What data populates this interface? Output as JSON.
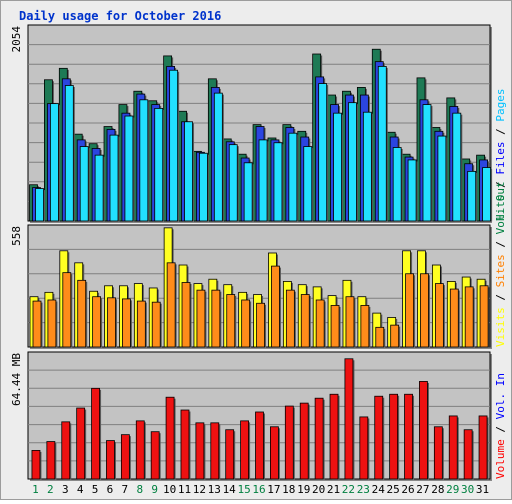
{
  "title": "Daily usage for October 2016",
  "right_legend": [
    {
      "text": "Hits",
      "color": "#008040"
    },
    {
      "text": "Files",
      "color": "#0000ff"
    },
    {
      "text": "Pages",
      "color": "#00c0ff"
    },
    {
      "text": "Visits",
      "color": "#ffff00"
    },
    {
      "text": "Sites",
      "color": "#ff8000"
    },
    {
      "text": "Vol. Out",
      "color": "#008040"
    },
    {
      "text": "Vol. In",
      "color": "#0000ff"
    },
    {
      "text": "Volume",
      "color": "#ff0000"
    }
  ],
  "colors": {
    "hits": "#1e7a55",
    "files": "#2b45e0",
    "pages": "#22e0ff",
    "visits": "#ffff22",
    "sites": "#ff8c1a",
    "volume": "#ee1111",
    "plot_bg": "#c3c3c3",
    "grid": "#808080",
    "title": "#0033cc",
    "weekday_label": "#000000",
    "weekend_label": "#008040"
  },
  "chart_data": [
    {
      "type": "bar",
      "name": "hits-files-pages",
      "ylim": [
        0,
        2054
      ],
      "ylabel": "2054",
      "categories": [
        "1",
        "2",
        "3",
        "4",
        "5",
        "6",
        "7",
        "8",
        "9",
        "10",
        "11",
        "12",
        "13",
        "14",
        "15",
        "16",
        "17",
        "18",
        "19",
        "20",
        "21",
        "22",
        "23",
        "24",
        "25",
        "26",
        "27",
        "28",
        "29",
        "30",
        "31"
      ],
      "weekend_days": [
        "1",
        "2",
        "8",
        "9",
        "15",
        "16",
        "22",
        "23",
        "29",
        "30"
      ],
      "series": [
        {
          "key": "hits",
          "values": [
            380,
            1480,
            1600,
            910,
            810,
            990,
            1220,
            1360,
            1260,
            1730,
            1150,
            730,
            1490,
            860,
            700,
            1010,
            870,
            1010,
            940,
            1750,
            1320,
            1360,
            1400,
            1800,
            930,
            700,
            1500,
            980,
            1290,
            650,
            690
          ]
        },
        {
          "key": "files",
          "values": [
            350,
            1230,
            1490,
            850,
            760,
            960,
            1130,
            1330,
            1220,
            1620,
            1040,
            720,
            1400,
            830,
            660,
            990,
            850,
            980,
            880,
            1510,
            1220,
            1320,
            1320,
            1670,
            880,
            670,
            1270,
            940,
            1200,
            600,
            640
          ]
        },
        {
          "key": "pages",
          "values": [
            340,
            1230,
            1420,
            780,
            690,
            900,
            1100,
            1270,
            1180,
            1580,
            1040,
            710,
            1340,
            800,
            610,
            850,
            820,
            920,
            780,
            1440,
            1130,
            1240,
            1140,
            1620,
            770,
            640,
            1220,
            890,
            1130,
            520,
            560
          ]
        }
      ]
    },
    {
      "type": "bar",
      "name": "visits-sites",
      "ylim": [
        0,
        558
      ],
      "ylabel": "558",
      "categories": [
        "1",
        "2",
        "3",
        "4",
        "5",
        "6",
        "7",
        "8",
        "9",
        "10",
        "11",
        "12",
        "13",
        "14",
        "15",
        "16",
        "17",
        "18",
        "19",
        "20",
        "21",
        "22",
        "23",
        "24",
        "25",
        "26",
        "27",
        "28",
        "29",
        "30",
        "31"
      ],
      "series": [
        {
          "key": "visits",
          "values": [
            230,
            250,
            440,
            385,
            255,
            280,
            280,
            290,
            270,
            545,
            375,
            290,
            310,
            285,
            250,
            240,
            430,
            300,
            285,
            275,
            235,
            305,
            230,
            155,
            135,
            440,
            440,
            375,
            300,
            320,
            310
          ]
        },
        {
          "key": "sites",
          "values": [
            210,
            215,
            340,
            305,
            230,
            225,
            220,
            210,
            205,
            385,
            295,
            260,
            260,
            240,
            215,
            200,
            370,
            260,
            240,
            215,
            190,
            230,
            190,
            90,
            100,
            335,
            335,
            290,
            265,
            275,
            280
          ]
        }
      ]
    },
    {
      "type": "bar",
      "name": "volume",
      "ylim": [
        0,
        64.44
      ],
      "ylabel": "64.44 MB",
      "categories": [
        "1",
        "2",
        "3",
        "4",
        "5",
        "6",
        "7",
        "8",
        "9",
        "10",
        "11",
        "12",
        "13",
        "14",
        "15",
        "16",
        "17",
        "18",
        "19",
        "20",
        "21",
        "22",
        "23",
        "24",
        "25",
        "26",
        "27",
        "28",
        "29",
        "30",
        "31"
      ],
      "series": [
        {
          "key": "volume",
          "values": [
            14.5,
            19.0,
            29.0,
            36.0,
            46.0,
            19.5,
            22.5,
            29.5,
            24.0,
            41.5,
            35.0,
            28.5,
            28.5,
            25.0,
            29.5,
            34.0,
            26.5,
            37.0,
            38.5,
            41.0,
            43.0,
            61.0,
            31.5,
            42.0,
            43.0,
            43.0,
            49.5,
            26.5,
            32.0,
            25.0,
            32.0
          ]
        }
      ]
    }
  ]
}
